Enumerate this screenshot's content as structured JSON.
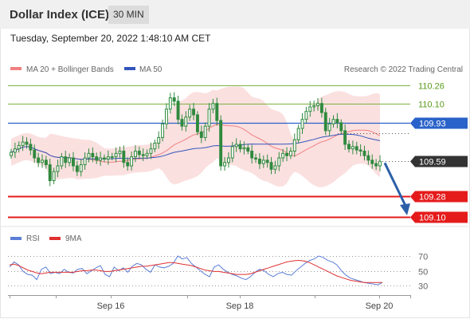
{
  "header": {
    "title": "Dollar Index (ICE)",
    "timeframe": "30 MIN",
    "datetime": "Tuesday, September 20, 2022 1:48:10 AM CET"
  },
  "legend": {
    "ma20_label": "MA 20 + Bollinger Bands",
    "ma50_label": "MA 50",
    "credit": "Research © 2022 Trading Central",
    "rsi_label": "RSI",
    "rsi_ma_label": "9MA"
  },
  "colors": {
    "bollinger_fill": "#fadada",
    "ma20": "#f08080",
    "ma50": "#3355bb",
    "candle": "#2f8a3e",
    "green_level": "#7cb342",
    "blue_level": "#2962c9",
    "red_level": "#e51b1b",
    "current_label_bg": "#333333",
    "arrow": "#2b5fa8",
    "rsi": "#5b7fd6",
    "rsi_ma": "#e03030"
  },
  "chart_data": [
    {
      "type": "line",
      "title": "Dollar Index (ICE)",
      "timeframe": "30 MIN",
      "x_ticks": [
        "Sep 16",
        "Sep 18",
        "Sep 20"
      ],
      "ylim": [
        109.0,
        110.35
      ],
      "series": [
        {
          "name": "MA 20 + Bollinger Bands"
        },
        {
          "name": "MA 50"
        }
      ],
      "closes": [
        109.67,
        109.7,
        109.73,
        109.76,
        109.74,
        109.69,
        109.62,
        109.58,
        109.6,
        109.56,
        109.42,
        109.5,
        109.55,
        109.63,
        109.58,
        109.62,
        109.55,
        109.5,
        109.56,
        109.62,
        109.66,
        109.63,
        109.6,
        109.62,
        109.61,
        109.63,
        109.63,
        109.66,
        109.68,
        109.58,
        109.55,
        109.63,
        109.68,
        109.65,
        109.64,
        109.66,
        109.7,
        109.75,
        109.8,
        109.92,
        110.05,
        110.15,
        110.12,
        109.96,
        109.9,
        109.98,
        110.05,
        110.0,
        109.85,
        109.8,
        109.9,
        110.05,
        110.1,
        109.95,
        109.55,
        109.58,
        109.62,
        109.72,
        109.74,
        109.7,
        109.71,
        109.68,
        109.62,
        109.61,
        109.57,
        109.6,
        109.58,
        109.52,
        109.55,
        109.62,
        109.66,
        109.64,
        109.68,
        109.78,
        109.88,
        109.96,
        110.03,
        110.07,
        110.08,
        110.1,
        110.02,
        109.86,
        109.92,
        109.96,
        109.93,
        109.86,
        109.74,
        109.7,
        109.72,
        109.69,
        109.68,
        109.64,
        109.6,
        109.57,
        109.55,
        109.59
      ],
      "levels": [
        {
          "value": 110.26,
          "label": "110.26",
          "style": "resistance-green"
        },
        {
          "value": 110.1,
          "label": "110.10",
          "style": "resistance-green"
        },
        {
          "value": 109.93,
          "label": "109.93",
          "style": "pivot-blue"
        },
        {
          "value": 109.59,
          "label": "109.59",
          "style": "current-price"
        },
        {
          "value": 109.28,
          "label": "109.28",
          "style": "target-red"
        },
        {
          "value": 109.1,
          "label": "109.10",
          "style": "target-red"
        }
      ],
      "projection_to": 109.1
    },
    {
      "type": "line",
      "title": "RSI",
      "ylim": [
        20,
        80
      ],
      "y_ticks": [
        70,
        50,
        30
      ],
      "series": [
        {
          "name": "RSI",
          "values": [
            55,
            62,
            58,
            49,
            45,
            44,
            38,
            52,
            55,
            46,
            48,
            46,
            52,
            48,
            47,
            52,
            53,
            46,
            50,
            54,
            57,
            45,
            42,
            55,
            50,
            54,
            48,
            56,
            60,
            58,
            52,
            48,
            58,
            55,
            54,
            56,
            60,
            70,
            66,
            68,
            60,
            55,
            50,
            45,
            42,
            55,
            58,
            52,
            48,
            45,
            43,
            40,
            38,
            42,
            48,
            52,
            50,
            45,
            42,
            46,
            48,
            45,
            44,
            50,
            55,
            60,
            64,
            66,
            70,
            68,
            64,
            62,
            58,
            50,
            44,
            40,
            38,
            36,
            34,
            33,
            32,
            31,
            34
          ]
        },
        {
          "name": "9MA",
          "values": [
            58,
            59,
            57,
            54,
            51,
            49,
            47,
            46,
            47,
            48,
            48,
            48,
            48,
            48,
            48,
            49,
            50,
            50,
            51,
            51,
            50,
            49,
            49,
            50,
            51,
            52,
            53,
            54,
            55,
            56,
            56,
            57,
            58,
            59,
            60,
            61,
            61,
            60,
            59,
            58,
            57,
            55,
            53,
            51,
            50,
            49,
            49,
            48,
            47,
            46,
            45,
            45,
            45,
            46,
            48,
            50,
            52,
            54,
            56,
            58,
            60,
            62,
            63,
            64,
            64,
            63,
            61,
            58,
            55,
            52,
            49,
            46,
            43,
            41,
            39,
            37,
            36,
            35,
            34,
            34,
            34,
            34,
            34
          ]
        }
      ]
    }
  ]
}
